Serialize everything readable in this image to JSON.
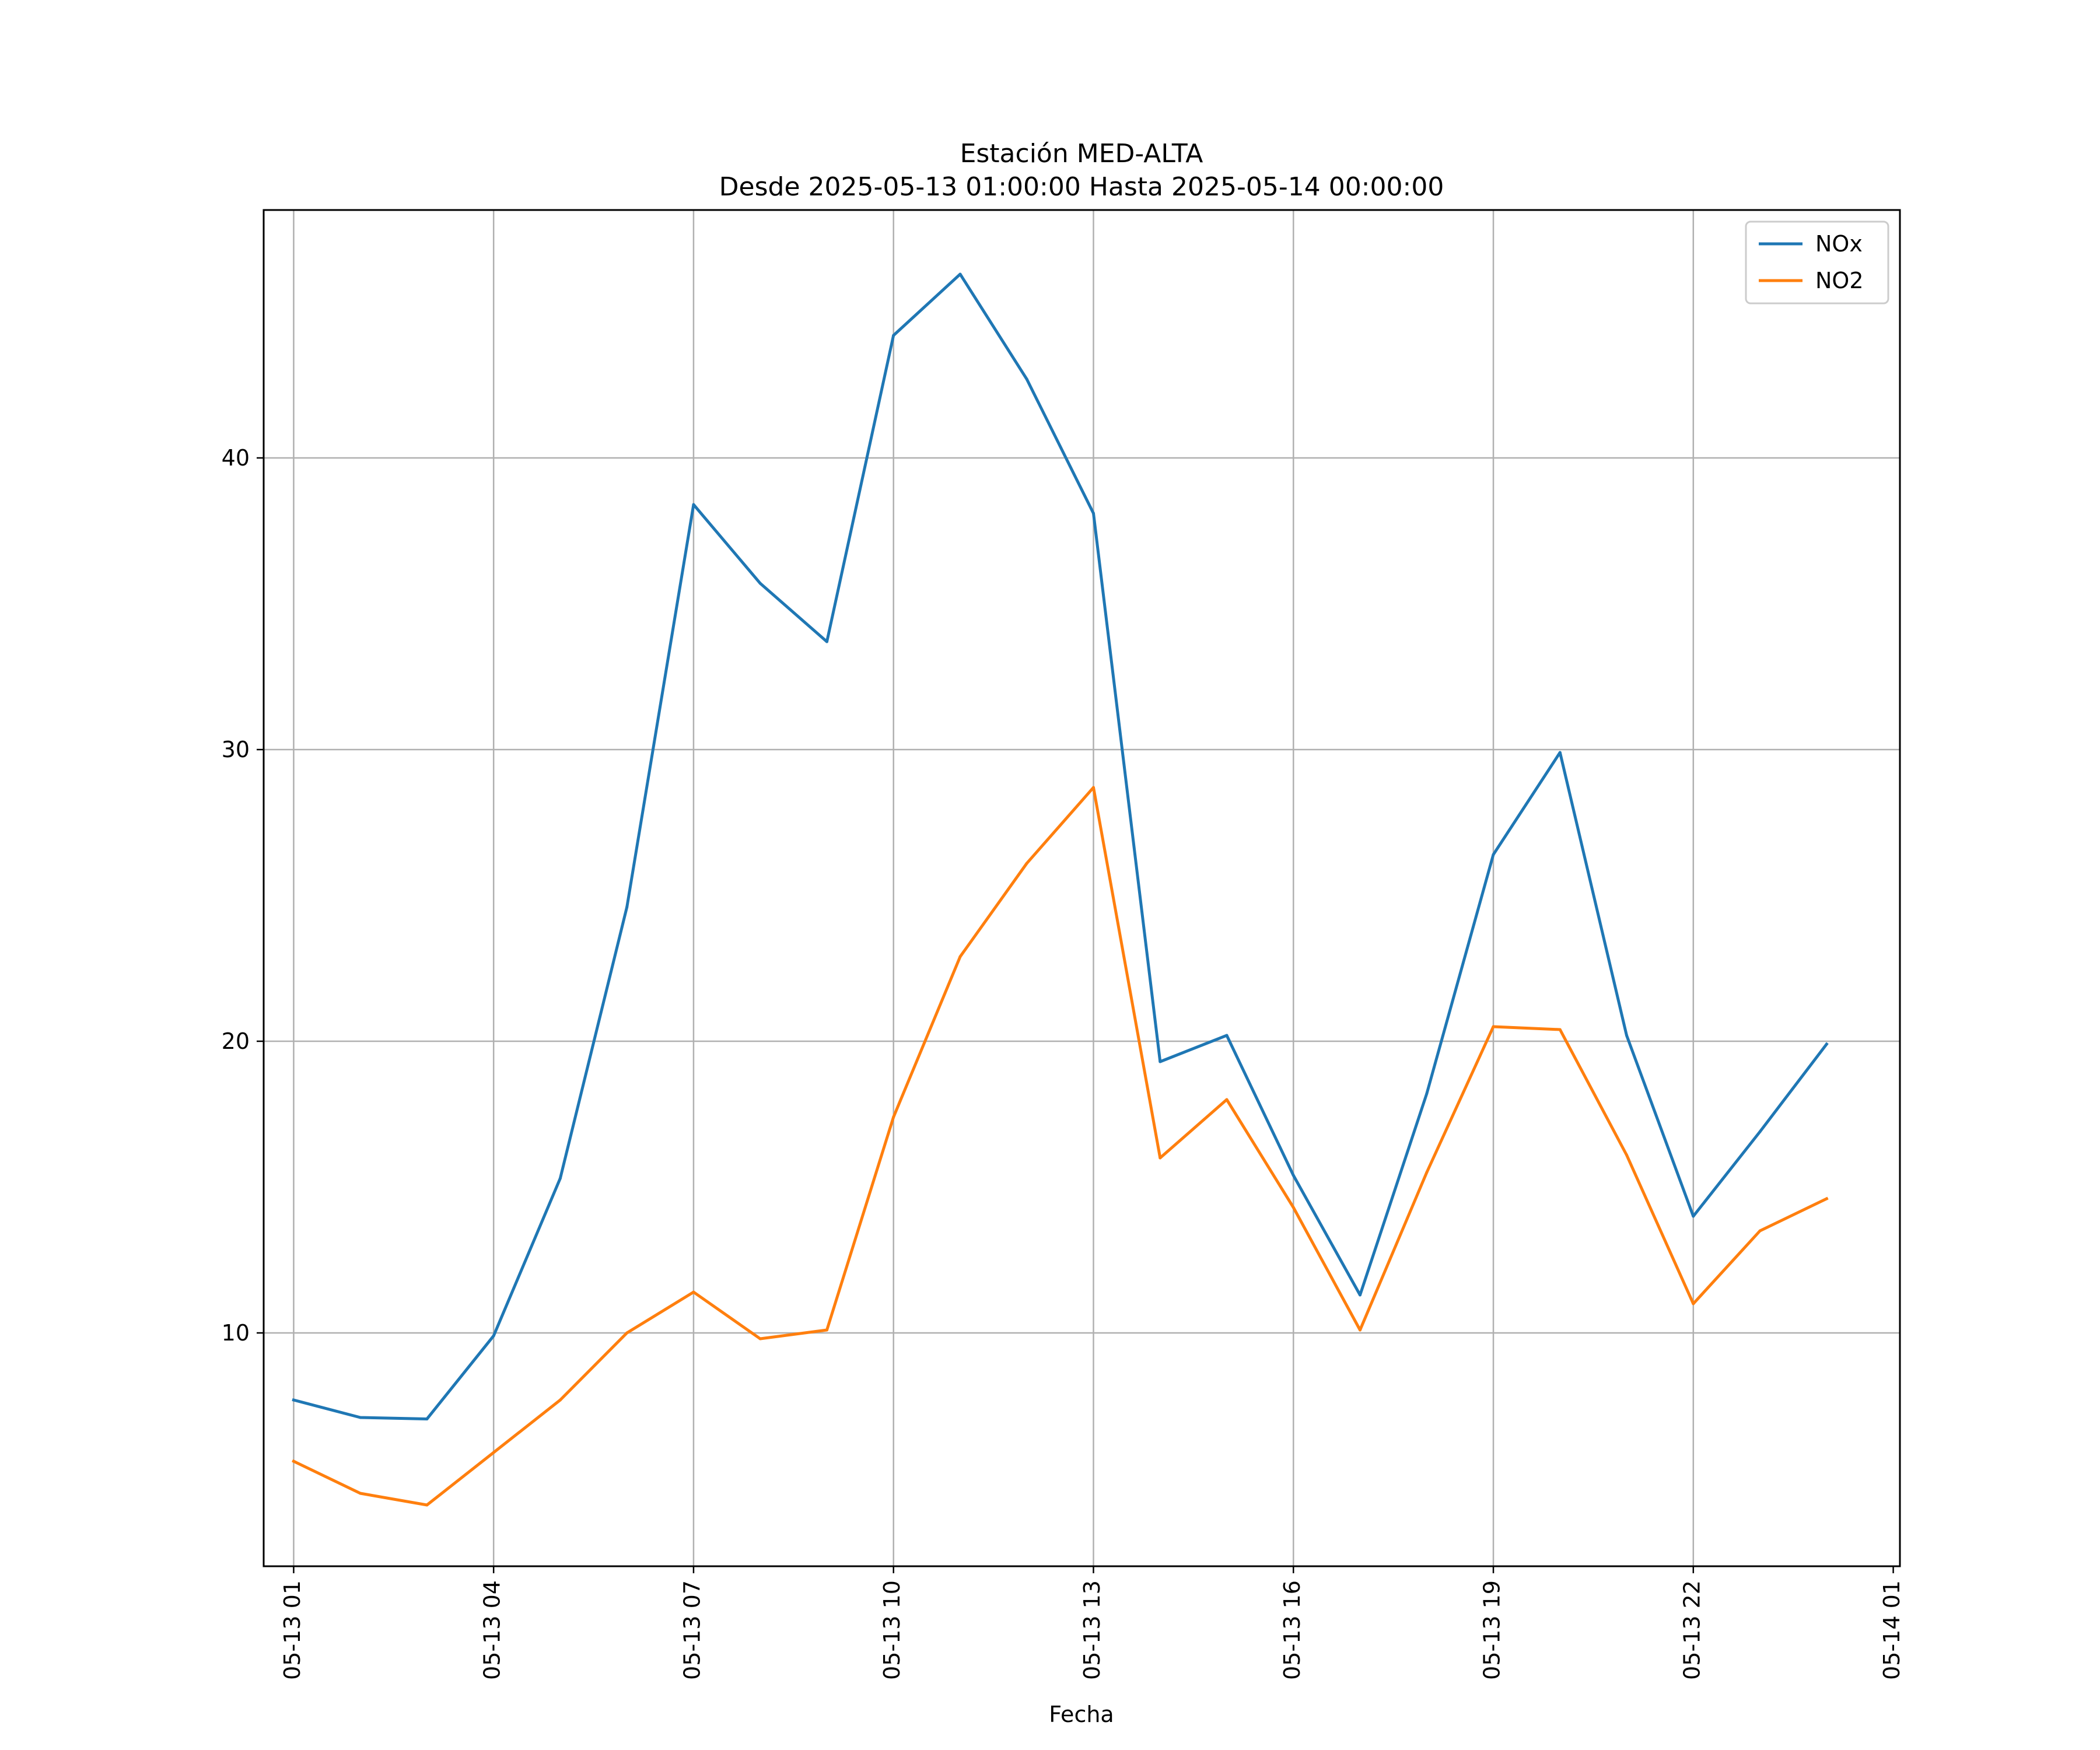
{
  "chart_data": {
    "type": "line",
    "title": "Estación MED-ALTA",
    "subtitle": "Desde 2025-05-13 01:00:00 Hasta 2025-05-14 00:00:00",
    "xlabel": "Fecha",
    "ylabel": "",
    "x_start": "2025-05-13 01:00",
    "x": [
      "05-13 01",
      "05-13 02",
      "05-13 03",
      "05-13 04",
      "05-13 05",
      "05-13 06",
      "05-13 07",
      "05-13 08",
      "05-13 09",
      "05-13 10",
      "05-13 11",
      "05-13 12",
      "05-13 13",
      "05-13 14",
      "05-13 15",
      "05-13 16",
      "05-13 17",
      "05-13 18",
      "05-13 19",
      "05-13 20",
      "05-13 21",
      "05-13 22",
      "05-13 23",
      "05-14 00"
    ],
    "xticks": [
      "05-13 01",
      "05-13 04",
      "05-13 07",
      "05-13 10",
      "05-13 13",
      "05-13 16",
      "05-13 19",
      "05-13 22",
      "05-14 01"
    ],
    "xlim": [
      -0.45,
      24.1
    ],
    "ylim": [
      2.0,
      48.5
    ],
    "yticks": [
      10,
      20,
      30,
      40
    ],
    "grid": true,
    "legend_position": "top-right",
    "series": [
      {
        "name": "NOx",
        "color": "#1f77b4",
        "values": [
          7.7,
          7.1,
          7.05,
          9.9,
          15.3,
          24.6,
          38.4,
          35.7,
          33.7,
          44.2,
          46.3,
          42.7,
          38.1,
          19.3,
          20.2,
          15.4,
          11.3,
          18.2,
          26.4,
          29.9,
          20.2,
          14.0,
          16.9,
          19.9
        ]
      },
      {
        "name": "NO2",
        "color": "#ff7f0e",
        "values": [
          5.6,
          4.5,
          4.1,
          5.9,
          7.7,
          10.0,
          11.4,
          9.8,
          10.1,
          17.4,
          22.9,
          26.1,
          28.7,
          16.0,
          18.0,
          14.3,
          10.1,
          15.5,
          20.5,
          20.4,
          16.1,
          11.0,
          13.5,
          14.6
        ]
      }
    ]
  }
}
